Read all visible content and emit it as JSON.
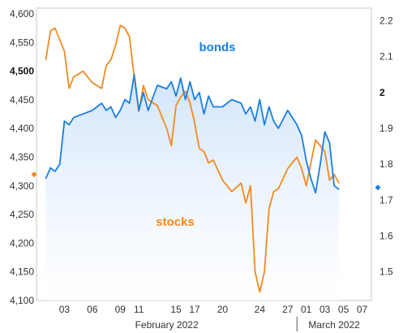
{
  "chart_data": {
    "type": "line",
    "title": "",
    "xlabel": "",
    "left_axis": {
      "ylim": [
        4100,
        4610
      ],
      "ticks": [
        4100,
        4150,
        4200,
        4250,
        4300,
        4350,
        4400,
        4450,
        4500,
        4550,
        4600
      ],
      "tick_labels": [
        "4,100",
        "4,150",
        "4,200",
        "4,250",
        "4,300",
        "4,350",
        "4,400",
        "4,450",
        "4,500",
        "4,550",
        "4,600"
      ],
      "bold_tick": "4,500"
    },
    "right_axis": {
      "ylim": [
        1.42,
        2.235
      ],
      "ticks": [
        1.5,
        1.6,
        1.7,
        1.8,
        1.9,
        2.0,
        2.1,
        2.2
      ],
      "tick_labels": [
        "1.5",
        "1.6",
        "1.7",
        "1.8",
        "1.9",
        "2",
        "2.1",
        "2.2"
      ],
      "bold_tick": "2"
    },
    "x_axis": {
      "range": [
        "2022-01-31",
        "2022-03-08"
      ],
      "tick_labels": [
        {
          "date": "2022-02-03",
          "label": "03"
        },
        {
          "date": "2022-02-06",
          "label": "06"
        },
        {
          "date": "2022-02-09",
          "label": "09"
        },
        {
          "date": "2022-02-11",
          "label": "11"
        },
        {
          "date": "2022-02-15",
          "label": "15"
        },
        {
          "date": "2022-02-17",
          "label": "17"
        },
        {
          "date": "2022-02-20",
          "label": "20"
        },
        {
          "date": "2022-02-24",
          "label": "24"
        },
        {
          "date": "2022-02-27",
          "label": "27"
        },
        {
          "date": "2022-03-01",
          "label": "01"
        },
        {
          "date": "2022-03-03",
          "label": "03"
        },
        {
          "date": "2022-03-05",
          "label": "05"
        },
        {
          "date": "2022-03-07",
          "label": "07"
        }
      ],
      "month_labels": [
        {
          "date": "2022-02-14",
          "label": "February 2022"
        },
        {
          "date": "2022-03-04",
          "label": "March 2022"
        }
      ],
      "month_divider": "2022-02-28"
    },
    "series": [
      {
        "name": "stocks",
        "axis": "left",
        "color": "#f28a1e",
        "x": [
          "2022-02-01",
          "2022-02-01.5",
          "2022-02-02",
          "2022-02-02.5",
          "2022-02-03",
          "2022-02-03.5",
          "2022-02-04",
          "2022-02-05",
          "2022-02-06",
          "2022-02-07",
          "2022-02-07.5",
          "2022-02-08",
          "2022-02-08.5",
          "2022-02-09",
          "2022-02-09.5",
          "2022-02-10",
          "2022-02-10.5",
          "2022-02-11",
          "2022-02-11.5",
          "2022-02-12",
          "2022-02-13",
          "2022-02-14",
          "2022-02-14.5",
          "2022-02-15",
          "2022-02-15.5",
          "2022-02-16",
          "2022-02-16.5",
          "2022-02-17",
          "2022-02-17.5",
          "2022-02-18",
          "2022-02-18.5",
          "2022-02-19",
          "2022-02-20",
          "2022-02-21",
          "2022-02-22",
          "2022-02-22.5",
          "2022-02-23",
          "2022-02-23.5",
          "2022-02-24",
          "2022-02-24.5",
          "2022-02-25",
          "2022-02-25.5",
          "2022-02-26",
          "2022-02-27",
          "2022-02-28",
          "2022-02-28.5",
          "2022-03-01",
          "2022-03-01.5",
          "2022-03-02",
          "2022-03-02.5",
          "2022-03-03",
          "2022-03-03.5",
          "2022-03-04",
          "2022-03-04.5"
        ],
        "y": [
          4520,
          4570,
          4575,
          4555,
          4535,
          4470,
          4490,
          4500,
          4480,
          4470,
          4510,
          4520,
          4545,
          4580,
          4575,
          4560,
          4490,
          4430,
          4475,
          4450,
          4440,
          4400,
          4370,
          4440,
          4455,
          4465,
          4445,
          4410,
          4365,
          4360,
          4340,
          4345,
          4310,
          4290,
          4305,
          4270,
          4300,
          4150,
          4115,
          4150,
          4260,
          4290,
          4295,
          4330,
          4350,
          4330,
          4300,
          4340,
          4380,
          4370,
          4360,
          4310,
          4320,
          4305
        ]
      },
      {
        "name": "bonds",
        "axis": "right",
        "color": "#1a7ee0",
        "x": [
          "2022-02-01",
          "2022-02-01.5",
          "2022-02-02",
          "2022-02-02.5",
          "2022-02-03",
          "2022-02-03.5",
          "2022-02-04",
          "2022-02-05",
          "2022-02-06",
          "2022-02-07",
          "2022-02-07.5",
          "2022-02-08",
          "2022-02-08.5",
          "2022-02-09",
          "2022-02-09.5",
          "2022-02-10",
          "2022-02-10.5",
          "2022-02-11",
          "2022-02-11.5",
          "2022-02-12",
          "2022-02-13",
          "2022-02-14",
          "2022-02-14.5",
          "2022-02-15",
          "2022-02-15.5",
          "2022-02-16",
          "2022-02-16.5",
          "2022-02-17",
          "2022-02-17.5",
          "2022-02-18",
          "2022-02-18.5",
          "2022-02-19",
          "2022-02-20",
          "2022-02-21",
          "2022-02-22",
          "2022-02-22.5",
          "2022-02-23",
          "2022-02-23.5",
          "2022-02-24",
          "2022-02-24.5",
          "2022-02-25",
          "2022-02-25.5",
          "2022-02-26",
          "2022-02-27",
          "2022-02-28",
          "2022-02-28.5",
          "2022-03-01",
          "2022-03-01.5",
          "2022-03-02",
          "2022-03-02.5",
          "2022-03-03",
          "2022-03-03.5",
          "2022-03-04",
          "2022-03-04.5"
        ],
        "y": [
          1.76,
          1.79,
          1.78,
          1.8,
          1.92,
          1.91,
          1.93,
          1.94,
          1.95,
          1.97,
          1.95,
          1.96,
          1.93,
          1.95,
          1.98,
          1.97,
          2.05,
          1.95,
          2.0,
          1.95,
          2.02,
          2.01,
          2.03,
          1.99,
          2.04,
          1.98,
          2.03,
          1.98,
          2.0,
          1.94,
          1.99,
          1.96,
          1.96,
          1.98,
          1.97,
          1.94,
          1.96,
          1.92,
          1.98,
          1.91,
          1.96,
          1.92,
          1.9,
          1.95,
          1.91,
          1.88,
          1.81,
          1.76,
          1.72,
          1.8,
          1.89,
          1.86,
          1.74,
          1.73
        ]
      }
    ],
    "annotations": [
      {
        "text": "bonds",
        "series": "bonds"
      },
      {
        "text": "stocks",
        "series": "stocks"
      }
    ],
    "end_markers": {
      "stocks_start": {
        "axis": "left",
        "value": 4320,
        "color": "#f28a1e"
      },
      "bonds_end": {
        "axis": "right",
        "value": 1.735,
        "color": "#1a7ee0"
      }
    },
    "grid": false,
    "legend": "none",
    "fill": {
      "series": "bonds",
      "color_top": "#cfe3fb",
      "color_bottom": "#ffffff"
    }
  }
}
